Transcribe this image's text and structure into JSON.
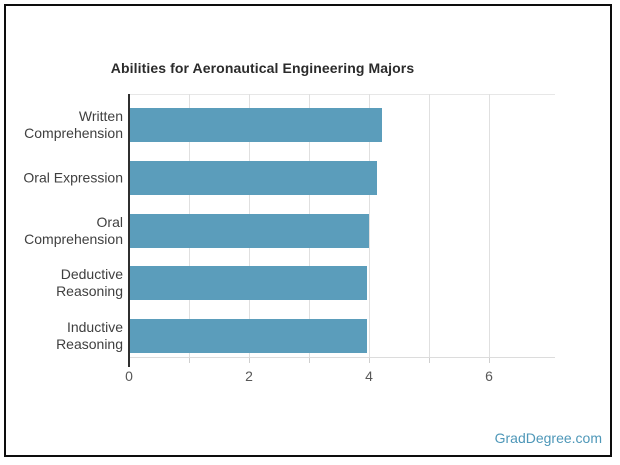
{
  "page": {
    "watermark": "GradDegree.com"
  },
  "colors": {
    "bar": "#5b9dbb",
    "grid": "#e0e0e0",
    "axis": "#2f2f2f",
    "watermark": "#4e97b8"
  },
  "chart_data": {
    "type": "bar",
    "orientation": "horizontal",
    "title": "Abilities for Aeronautical Engineering Majors",
    "categories": [
      "Written Comprehension",
      "Oral Expression",
      "Oral Comprehension",
      "Deductive Reasoning",
      "Inductive Reasoning"
    ],
    "category_label_lines": [
      [
        "Written",
        "Comprehension"
      ],
      [
        "Oral Expression"
      ],
      [
        "Oral Comprehension"
      ],
      [
        "Deductive",
        "Reasoning"
      ],
      [
        "Inductive Reasoning"
      ]
    ],
    "values": [
      4.21,
      4.13,
      3.99,
      3.95,
      3.95
    ],
    "xlabel": "",
    "ylabel": "",
    "xlim": [
      0,
      7.1
    ],
    "x_ticks": [
      0,
      2,
      4,
      6
    ],
    "x_gridline_units": [
      1,
      2,
      3,
      4,
      5,
      6
    ],
    "grid_on": true,
    "legend": null,
    "bar_color": "#5b9dbb"
  }
}
